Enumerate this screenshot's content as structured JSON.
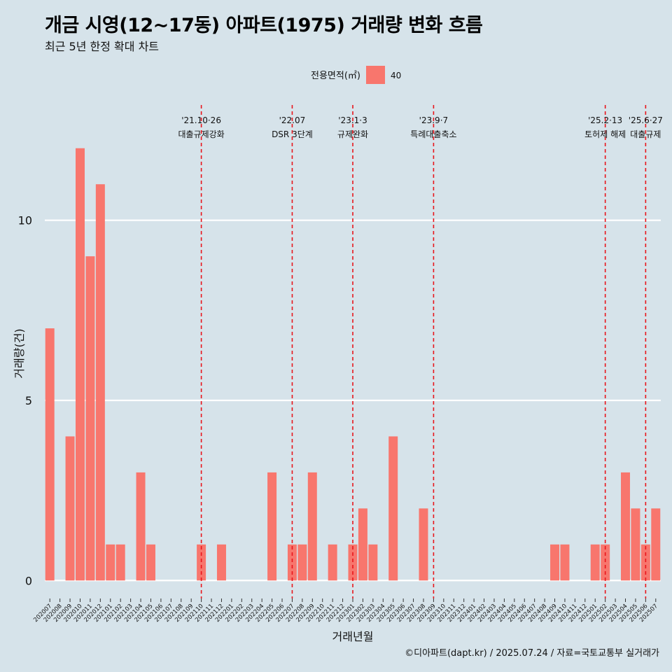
{
  "title": "개금 시영(12~17동) 아파트(1975) 거래량 변화 흐름",
  "subtitle": "최근 5년 한정 확대 차트",
  "caption": "©디아파트(dapt.kr) / 2025.07.24 / 자료=국토교통부 실거래가",
  "colors": {
    "background": "#d6e3ea",
    "bar": "#f8766d",
    "event_line": "#e8151b",
    "grid": "#ffffff"
  },
  "chart_data": {
    "type": "bar",
    "xlabel": "거래년월",
    "ylabel": "거래량(건)",
    "ylim": [
      -0.5,
      13.2
    ],
    "yticks": [
      0,
      5,
      10
    ],
    "grid": "horizontal major lines only",
    "legend": {
      "title": "전용면적(㎡)",
      "position": "top",
      "entries": [
        "40"
      ]
    },
    "categories": [
      "202007",
      "202008",
      "202009",
      "202010",
      "202011",
      "202012",
      "202101",
      "202102",
      "202103",
      "202104",
      "202105",
      "202106",
      "202107",
      "202108",
      "202109",
      "202110",
      "202111",
      "202112",
      "202201",
      "202202",
      "202203",
      "202204",
      "202205",
      "202206",
      "202207",
      "202208",
      "202209",
      "202210",
      "202211",
      "202212",
      "202301",
      "202302",
      "202303",
      "202304",
      "202305",
      "202306",
      "202307",
      "202308",
      "202309",
      "202310",
      "202311",
      "202312",
      "202401",
      "202402",
      "202403",
      "202404",
      "202405",
      "202406",
      "202407",
      "202408",
      "202409",
      "202410",
      "202411",
      "202412",
      "202501",
      "202502",
      "202503",
      "202504",
      "202505",
      "202506",
      "202507"
    ],
    "series": [
      {
        "name": "40",
        "values": [
          7,
          0,
          4,
          12,
          9,
          11,
          1,
          1,
          0,
          3,
          1,
          0,
          0,
          0,
          0,
          1,
          0,
          1,
          0,
          0,
          0,
          0,
          3,
          0,
          1,
          1,
          3,
          0,
          1,
          0,
          1,
          2,
          1,
          0,
          4,
          0,
          0,
          2,
          0,
          0,
          0,
          0,
          0,
          0,
          0,
          0,
          0,
          0,
          0,
          0,
          1,
          1,
          0,
          0,
          1,
          1,
          0,
          3,
          2,
          1,
          2
        ]
      }
    ],
    "events": [
      {
        "x": "202110",
        "date": "'21.10·26",
        "label": "대출규제강화"
      },
      {
        "x": "202207",
        "date": "'22.07",
        "label": "DSR 3단계"
      },
      {
        "x": "202301",
        "date": "'23.1·3",
        "label": "규제완화"
      },
      {
        "x": "202309",
        "date": "'23.9·7",
        "label": "특례대출축소"
      },
      {
        "x": "202502",
        "date": "'25.2·13",
        "label": "토허제 해제"
      },
      {
        "x": "202506",
        "date": "'25.6·27",
        "label": "대출규제"
      }
    ]
  }
}
